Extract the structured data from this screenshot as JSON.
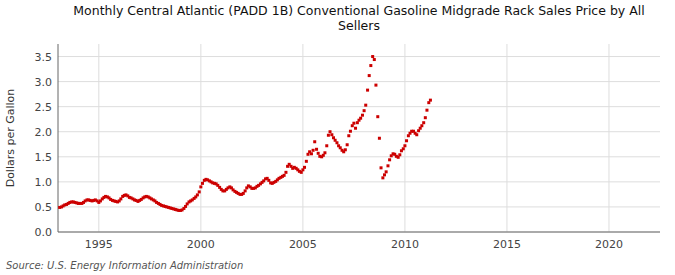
{
  "chart_data": {
    "type": "scatter",
    "title": "Monthly Central Atlantic (PADD 1B) Conventional Gasoline Midgrade Rack Sales Price by All\nSellers",
    "y_label": "Dollars per Gallon",
    "source": "Source: U.S. Energy Information Administration",
    "color": "#CC0000",
    "marker": "square",
    "grid": true,
    "xlim": [
      1993.0,
      2022.5
    ],
    "ylim": [
      0.0,
      3.75
    ],
    "xticks": [
      1995,
      2000,
      2005,
      2010,
      2015,
      2020
    ],
    "yticks": [
      {
        "value": 0.0,
        "label": "0.0"
      },
      0.5,
      {
        "value": 1.0,
        "label": "1.0"
      },
      1.5,
      {
        "value": 2.0,
        "label": "2.0"
      },
      2.5,
      {
        "value": 3.0,
        "label": "3.0"
      },
      3.5
    ],
    "x": [
      1993.08,
      1993.17,
      1993.25,
      1993.33,
      1993.42,
      1993.5,
      1993.58,
      1993.67,
      1993.75,
      1993.83,
      1993.92,
      1994.0,
      1994.08,
      1994.17,
      1994.25,
      1994.33,
      1994.42,
      1994.5,
      1994.58,
      1994.67,
      1994.75,
      1994.83,
      1994.92,
      1995.0,
      1995.08,
      1995.17,
      1995.25,
      1995.33,
      1995.42,
      1995.5,
      1995.58,
      1995.67,
      1995.75,
      1995.83,
      1995.92,
      1996.0,
      1996.08,
      1996.17,
      1996.25,
      1996.33,
      1996.42,
      1996.5,
      1996.58,
      1996.67,
      1996.75,
      1996.83,
      1996.92,
      1997.0,
      1997.08,
      1997.17,
      1997.25,
      1997.33,
      1997.42,
      1997.5,
      1997.58,
      1997.67,
      1997.75,
      1997.83,
      1997.92,
      1998.0,
      1998.08,
      1998.17,
      1998.25,
      1998.33,
      1998.42,
      1998.5,
      1998.58,
      1998.67,
      1998.75,
      1998.83,
      1998.92,
      1999.0,
      1999.08,
      1999.17,
      1999.25,
      1999.33,
      1999.42,
      1999.5,
      1999.58,
      1999.67,
      1999.75,
      1999.83,
      1999.92,
      2000.0,
      2000.08,
      2000.17,
      2000.25,
      2000.33,
      2000.42,
      2000.5,
      2000.58,
      2000.67,
      2000.75,
      2000.83,
      2000.92,
      2001.0,
      2001.08,
      2001.17,
      2001.25,
      2001.33,
      2001.42,
      2001.5,
      2001.58,
      2001.67,
      2001.75,
      2001.83,
      2001.92,
      2002.0,
      2002.08,
      2002.17,
      2002.25,
      2002.33,
      2002.42,
      2002.5,
      2002.58,
      2002.67,
      2002.75,
      2002.83,
      2002.92,
      2003.0,
      2003.08,
      2003.17,
      2003.25,
      2003.33,
      2003.42,
      2003.5,
      2003.58,
      2003.67,
      2003.75,
      2003.83,
      2003.92,
      2004.0,
      2004.08,
      2004.17,
      2004.25,
      2004.33,
      2004.42,
      2004.5,
      2004.58,
      2004.67,
      2004.75,
      2004.83,
      2004.92,
      2005.0,
      2005.08,
      2005.17,
      2005.25,
      2005.33,
      2005.42,
      2005.5,
      2005.58,
      2005.67,
      2005.75,
      2005.83,
      2005.92,
      2006.0,
      2006.08,
      2006.17,
      2006.25,
      2006.33,
      2006.42,
      2006.5,
      2006.58,
      2006.67,
      2006.75,
      2006.83,
      2006.92,
      2007.0,
      2007.08,
      2007.17,
      2007.25,
      2007.33,
      2007.42,
      2007.5,
      2007.58,
      2007.67,
      2007.75,
      2007.83,
      2007.92,
      2008.0,
      2008.08,
      2008.17,
      2008.25,
      2008.33,
      2008.42,
      2008.5,
      2008.58,
      2008.67,
      2008.75,
      2008.83,
      2008.92,
      2009.0,
      2009.08,
      2009.17,
      2009.25,
      2009.33,
      2009.42,
      2009.5,
      2009.58,
      2009.67,
      2009.75,
      2009.83,
      2009.92,
      2010.0,
      2010.08,
      2010.17,
      2010.25,
      2010.33,
      2010.42,
      2010.5,
      2010.58,
      2010.67,
      2010.75,
      2010.83,
      2010.92,
      2011.0,
      2011.08,
      2011.17,
      2011.25
    ],
    "values": [
      0.49,
      0.5,
      0.52,
      0.54,
      0.55,
      0.57,
      0.59,
      0.6,
      0.6,
      0.59,
      0.58,
      0.57,
      0.57,
      0.57,
      0.59,
      0.62,
      0.64,
      0.64,
      0.63,
      0.62,
      0.63,
      0.64,
      0.62,
      0.59,
      0.62,
      0.66,
      0.69,
      0.71,
      0.7,
      0.68,
      0.65,
      0.63,
      0.62,
      0.61,
      0.6,
      0.62,
      0.66,
      0.71,
      0.73,
      0.74,
      0.72,
      0.69,
      0.68,
      0.66,
      0.64,
      0.63,
      0.61,
      0.63,
      0.65,
      0.68,
      0.7,
      0.71,
      0.7,
      0.68,
      0.66,
      0.64,
      0.62,
      0.59,
      0.57,
      0.55,
      0.53,
      0.52,
      0.51,
      0.5,
      0.49,
      0.48,
      0.47,
      0.46,
      0.45,
      0.44,
      0.43,
      0.43,
      0.44,
      0.47,
      0.51,
      0.56,
      0.6,
      0.62,
      0.64,
      0.67,
      0.7,
      0.74,
      0.8,
      0.9,
      0.97,
      1.03,
      1.05,
      1.04,
      1.02,
      1.0,
      0.98,
      0.97,
      0.96,
      0.93,
      0.89,
      0.85,
      0.82,
      0.82,
      0.85,
      0.88,
      0.9,
      0.88,
      0.84,
      0.81,
      0.79,
      0.77,
      0.75,
      0.75,
      0.77,
      0.82,
      0.88,
      0.92,
      0.9,
      0.87,
      0.87,
      0.88,
      0.91,
      0.93,
      0.96,
      0.99,
      1.02,
      1.06,
      1.07,
      1.03,
      0.98,
      0.97,
      0.99,
      1.01,
      1.04,
      1.07,
      1.09,
      1.11,
      1.13,
      1.19,
      1.31,
      1.35,
      1.31,
      1.27,
      1.29,
      1.27,
      1.24,
      1.21,
      1.19,
      1.24,
      1.29,
      1.41,
      1.55,
      1.6,
      1.56,
      1.63,
      1.8,
      1.65,
      1.57,
      1.51,
      1.5,
      1.53,
      1.58,
      1.72,
      1.93,
      2.0,
      1.94,
      1.88,
      1.83,
      1.78,
      1.72,
      1.68,
      1.63,
      1.6,
      1.64,
      1.74,
      1.92,
      2.01,
      2.12,
      2.17,
      2.07,
      2.18,
      2.23,
      2.27,
      2.33,
      2.42,
      2.53,
      2.83,
      3.12,
      3.32,
      3.5,
      3.44,
      2.93,
      2.3,
      1.87,
      1.28,
      1.08,
      1.14,
      1.2,
      1.32,
      1.44,
      1.52,
      1.56,
      1.55,
      1.51,
      1.49,
      1.54,
      1.62,
      1.66,
      1.72,
      1.82,
      1.92,
      1.97,
      2.01,
      2.01,
      1.97,
      1.94,
      2.02,
      2.07,
      2.12,
      2.18,
      2.28,
      2.43,
      2.58,
      2.63
    ]
  }
}
